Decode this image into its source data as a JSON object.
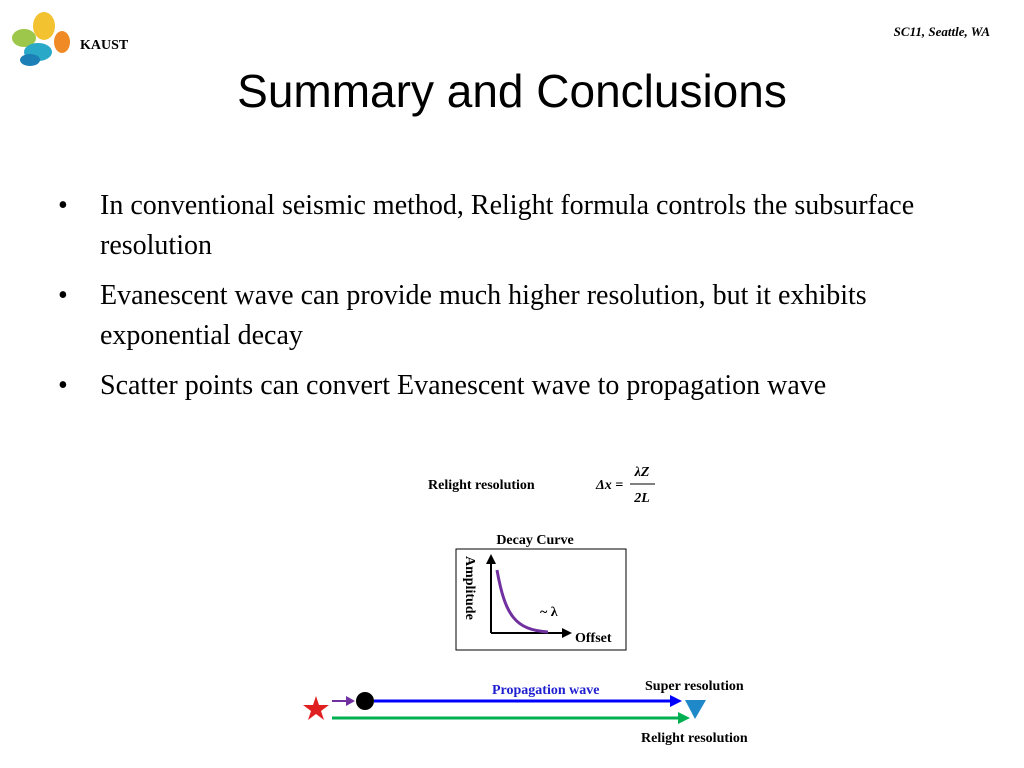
{
  "header": {
    "logo_text": "KAUST",
    "venue": "SC11, Seattle, WA"
  },
  "title": "Summary and Conclusions",
  "bullets": [
    "In conventional seismic method, Relight formula controls the subsurface resolution",
    "Evanescent wave can provide much higher resolution, but it exhibits exponential decay",
    "Scatter points can convert Evanescent wave to propagation wave"
  ],
  "figure": {
    "formula_label": "Relight resolution",
    "formula_lhs": "Δx =",
    "formula_numerator": "λZ",
    "formula_denominator": "2L",
    "decay_title": "Decay Curve",
    "decay_y_label": "Amplitude",
    "decay_annotation": "~ λ",
    "decay_x_label": "Offset",
    "propagation_label": "Propagation wave",
    "super_label": "Super resolution",
    "relight_label": "Relight resolution"
  }
}
